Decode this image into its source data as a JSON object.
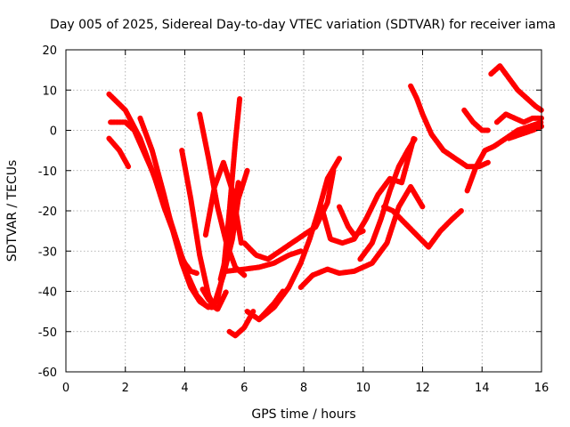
{
  "chart_data": {
    "type": "scatter",
    "title": "Day 005 of 2025, Sidereal Day-to-day VTEC variation (SDTVAR) for receiver iama",
    "xlabel": "GPS time / hours",
    "ylabel": "SDTVAR / TECUs",
    "xlim": [
      0,
      16
    ],
    "ylim": [
      -60,
      20
    ],
    "xticks": [
      0,
      2,
      4,
      6,
      8,
      10,
      12,
      14,
      16
    ],
    "yticks": [
      -60,
      -50,
      -40,
      -30,
      -20,
      -10,
      0,
      10,
      20
    ],
    "grid": true,
    "legend": "none",
    "marker_color": "#ff0000",
    "series": [
      {
        "x": [
          1.45,
          1.8,
          2.1
        ],
        "y": [
          -2,
          -5,
          -9
        ]
      },
      {
        "x": [
          1.5,
          1.8,
          2.0
        ],
        "y": [
          2,
          2,
          2
        ]
      },
      {
        "x": [
          1.45,
          2.0,
          2.5,
          3.0,
          3.3,
          3.6,
          3.8,
          4.0,
          4.2,
          4.4
        ],
        "y": [
          9,
          5,
          -2,
          -12,
          -19,
          -25,
          -30,
          -33,
          -35,
          -35.5
        ]
      },
      {
        "x": [
          2.0,
          2.3,
          2.6,
          2.9,
          3.2,
          3.5,
          3.8,
          4.1,
          4.4,
          4.7,
          4.9,
          5.1,
          5.3,
          5.5,
          5.7,
          5.85
        ],
        "y": [
          2,
          0,
          -5,
          -10,
          -16,
          -22,
          -29,
          -36,
          -41,
          -43.5,
          -44,
          -42,
          -35,
          -20,
          -3,
          8
        ]
      },
      {
        "x": [
          2.5,
          2.9,
          3.3,
          3.6,
          3.9,
          4.2,
          4.5,
          4.8,
          5.0,
          5.3,
          5.6,
          5.8,
          6.1
        ],
        "y": [
          3,
          -5,
          -16,
          -25,
          -33,
          -39,
          -42.5,
          -44,
          -43,
          -36,
          -27,
          -17,
          -10
        ]
      },
      {
        "x": [
          3.9,
          4.2,
          4.5,
          4.8,
          5.0
        ],
        "y": [
          -5,
          -17,
          -31,
          -41,
          -44
        ]
      },
      {
        "x": [
          4.6,
          4.8,
          5.1,
          5.4
        ],
        "y": [
          -39.5,
          -42,
          -44.5,
          -40
        ]
      },
      {
        "x": [
          4.5,
          4.8,
          5.1,
          5.4,
          5.7,
          6.0
        ],
        "y": [
          4,
          -7,
          -19,
          -28,
          -34,
          -36
        ]
      },
      {
        "x": [
          4.7,
          5.0,
          5.3,
          5.6,
          5.9
        ],
        "y": [
          -26,
          -14,
          -8,
          -15,
          -28
        ]
      },
      {
        "x": [
          5.2,
          5.4,
          5.6,
          5.8
        ],
        "y": [
          -37,
          -31,
          -22,
          -13
        ]
      },
      {
        "x": [
          5.4,
          6.0,
          6.5,
          7.0,
          7.5,
          7.9
        ],
        "y": [
          -35,
          -34.5,
          -34,
          -33,
          -31,
          -30
        ]
      },
      {
        "x": [
          5.5,
          5.7,
          6.0,
          6.3
        ],
        "y": [
          -50,
          -51,
          -49,
          -45
        ]
      },
      {
        "x": [
          6.1,
          6.5,
          7.0,
          7.3
        ],
        "y": [
          -45,
          -47,
          -43,
          -40
        ]
      },
      {
        "x": [
          6.0,
          6.4,
          6.8,
          7.2,
          7.6,
          8.0,
          8.4,
          8.8,
          9.0
        ],
        "y": [
          -28,
          -31,
          -32,
          -30,
          -28,
          -26,
          -24,
          -18,
          -10
        ]
      },
      {
        "x": [
          6.5,
          7.0,
          7.5,
          7.9,
          8.2,
          8.5,
          8.8,
          9.2
        ],
        "y": [
          -47,
          -44,
          -39,
          -33,
          -27,
          -20,
          -12,
          -7
        ]
      },
      {
        "x": [
          7.9,
          8.3,
          8.8,
          9.2,
          9.7,
          10.3,
          10.8,
          11.2,
          11.6,
          12.0
        ],
        "y": [
          -39,
          -36,
          -34.5,
          -35.5,
          -35,
          -33,
          -28,
          -19,
          -14,
          -19
        ]
      },
      {
        "x": [
          8.6,
          8.9,
          9.3,
          9.7,
          10.1,
          10.5,
          10.9,
          11.3,
          11.7
        ],
        "y": [
          -19,
          -27,
          -28,
          -27,
          -22,
          -16,
          -12,
          -13,
          -2
        ]
      },
      {
        "x": [
          9.2,
          9.5,
          9.7,
          10.0
        ],
        "y": [
          -19,
          -24,
          -26,
          -25
        ]
      },
      {
        "x": [
          9.9,
          10.3,
          10.6,
          10.9,
          11.2,
          11.5,
          11.75
        ],
        "y": [
          -32,
          -28,
          -22,
          -15,
          -9,
          -5,
          -2
        ]
      },
      {
        "x": [
          10.7,
          11.0,
          11.4,
          11.8,
          12.2,
          12.6,
          13.0,
          13.3
        ],
        "y": [
          -19,
          -20,
          -23,
          -26,
          -29,
          -25,
          -22,
          -20
        ]
      },
      {
        "x": [
          11.6,
          11.8,
          12.0,
          12.3,
          12.7,
          13.1,
          13.5,
          13.9,
          14.2
        ],
        "y": [
          11,
          8,
          4,
          -1,
          -5,
          -7,
          -9,
          -9,
          -8
        ]
      },
      {
        "x": [
          13.4,
          13.7,
          14.0,
          14.2
        ],
        "y": [
          5,
          2,
          0,
          0
        ]
      },
      {
        "x": [
          13.5,
          13.8,
          14.1,
          14.4,
          14.8,
          15.2,
          15.6,
          16.0
        ],
        "y": [
          -15,
          -9,
          -5,
          -4,
          -2,
          0,
          1,
          2
        ]
      },
      {
        "x": [
          14.3,
          14.6,
          14.9,
          15.2,
          15.5,
          15.8,
          16.0
        ],
        "y": [
          14,
          16,
          13,
          10,
          8,
          6,
          5
        ]
      },
      {
        "x": [
          14.5,
          14.8,
          15.1,
          15.4,
          15.7,
          16.0
        ],
        "y": [
          2,
          4,
          3,
          2,
          3,
          3
        ]
      },
      {
        "x": [
          14.9,
          15.3,
          15.7,
          16.0
        ],
        "y": [
          -2,
          -1,
          0,
          1
        ]
      }
    ]
  }
}
